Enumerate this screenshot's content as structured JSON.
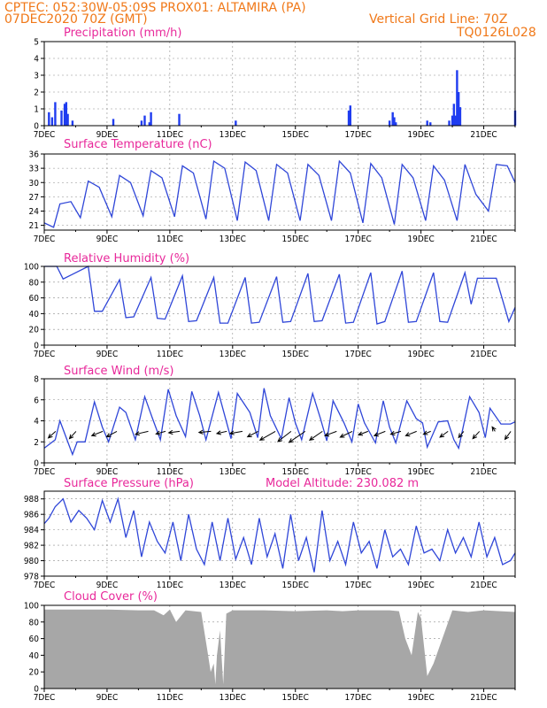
{
  "header": {
    "left_line1": "CPTEC:   052:30W-05:09S   PROX01: ALTAMIRA (PA)",
    "left_line2": "07DEC2020 70Z (GMT)",
    "right_line1": "Vertical Grid Line: 70Z",
    "right_line2": "TQ0126L028"
  },
  "colors": {
    "header": "#f07818",
    "panel_title": "#e8289a",
    "series_line": "#2f46d8",
    "precip_bar": "#1f3cf0",
    "wind_arrow": "#000000",
    "cloud_fill": "#a7a7a7"
  },
  "date_ticks": [
    "7DEC",
    "9DEC",
    "11DEC",
    "13DEC",
    "15DEC",
    "17DEC",
    "19DEC",
    "21DEC"
  ],
  "model_altitude": "Model Altitude: 230.082 m",
  "chart_data": [
    {
      "id": "precip",
      "type": "bar",
      "title": "Precipitation (mm/h)",
      "ylim": [
        0,
        5
      ],
      "yticks": [
        "0",
        "1",
        "2",
        "3",
        "4",
        "5"
      ],
      "xlim_days": [
        0,
        15
      ],
      "x_days": [
        0.15,
        0.25,
        0.35,
        0.55,
        0.65,
        0.7,
        0.75,
        0.9,
        2.2,
        3.1,
        3.2,
        3.35,
        3.4,
        4.3,
        6.1,
        9.7,
        9.75,
        11.0,
        11.1,
        11.15,
        11.2,
        12.2,
        12.3,
        12.9,
        13.0,
        13.05,
        13.1,
        13.15,
        13.2,
        13.25,
        15.0
      ],
      "values": [
        0.8,
        0.5,
        1.4,
        0.9,
        1.3,
        1.4,
        0.7,
        0.3,
        0.4,
        0.3,
        0.6,
        0.2,
        0.8,
        0.7,
        0.3,
        0.9,
        1.2,
        0.3,
        0.8,
        0.5,
        0.2,
        0.3,
        0.2,
        0.3,
        0.6,
        1.3,
        0.6,
        3.3,
        2.0,
        1.1,
        0.9
      ]
    },
    {
      "id": "temp",
      "type": "line",
      "title": "Surface Temperature (nC)",
      "ylim": [
        20,
        36
      ],
      "yticks": [
        "21",
        "24",
        "27",
        "30",
        "33",
        "36"
      ],
      "xlim_days": [
        0,
        15
      ],
      "x_days": [
        0.0,
        0.3,
        0.5,
        0.85,
        1.15,
        1.4,
        1.75,
        2.15,
        2.4,
        2.75,
        3.15,
        3.4,
        3.75,
        4.15,
        4.4,
        4.75,
        5.15,
        5.4,
        5.75,
        6.15,
        6.4,
        6.75,
        7.15,
        7.4,
        7.75,
        8.15,
        8.4,
        8.75,
        9.15,
        9.4,
        9.75,
        10.15,
        10.4,
        10.75,
        11.15,
        11.4,
        11.75,
        12.15,
        12.4,
        12.75,
        13.15,
        13.4,
        13.75,
        14.15,
        14.4,
        14.75,
        15.0
      ],
      "values": [
        21.5,
        20.6,
        25.5,
        26.0,
        22.6,
        30.3,
        29.0,
        22.8,
        31.5,
        30.0,
        23.0,
        32.5,
        31.0,
        22.8,
        33.5,
        32.0,
        22.3,
        34.5,
        33.0,
        22.0,
        34.3,
        32.5,
        22.0,
        33.8,
        32.0,
        22.0,
        33.8,
        31.5,
        22.0,
        34.5,
        32.0,
        21.5,
        34.0,
        31.0,
        21.2,
        33.8,
        31.0,
        22.0,
        33.5,
        30.5,
        22.0,
        33.8,
        27.5,
        24.0,
        33.8,
        33.5,
        30.0
      ]
    },
    {
      "id": "rh",
      "type": "line",
      "title": "Relative Humidity (%)",
      "ylim": [
        0,
        100
      ],
      "yticks": [
        "0",
        "20",
        "40",
        "60",
        "80",
        "100"
      ],
      "xlim_days": [
        0,
        15
      ],
      "x_days": [
        0.0,
        0.4,
        0.6,
        0.9,
        1.4,
        1.6,
        1.85,
        2.4,
        2.6,
        2.85,
        3.4,
        3.6,
        3.85,
        4.4,
        4.6,
        4.85,
        5.4,
        5.6,
        5.85,
        6.4,
        6.6,
        6.85,
        7.4,
        7.6,
        7.85,
        8.4,
        8.6,
        8.85,
        9.4,
        9.6,
        9.85,
        10.4,
        10.6,
        10.85,
        11.4,
        11.6,
        11.85,
        12.4,
        12.6,
        12.85,
        13.4,
        13.6,
        13.8,
        14.4,
        14.8,
        15.0
      ],
      "values": [
        100,
        100,
        84,
        90,
        100,
        43,
        43,
        83,
        35,
        36,
        86,
        34,
        33,
        88,
        30,
        31,
        86,
        28,
        28,
        86,
        28,
        29,
        87,
        29,
        30,
        91,
        30,
        31,
        90,
        28,
        29,
        92,
        27,
        30,
        94,
        29,
        30,
        92,
        30,
        29,
        92,
        52,
        85,
        85,
        30,
        48
      ]
    },
    {
      "id": "wind",
      "type": "line",
      "title": "Surface Wind (m/s)",
      "ylim": [
        0,
        8
      ],
      "yticks": [
        "0",
        "2",
        "4",
        "6",
        "8"
      ],
      "xlim_days": [
        0,
        15
      ],
      "x_days": [
        0.0,
        0.35,
        0.5,
        0.9,
        1.05,
        1.3,
        1.6,
        1.85,
        2.05,
        2.4,
        2.6,
        2.9,
        3.2,
        3.45,
        3.7,
        3.95,
        4.2,
        4.5,
        4.7,
        4.95,
        5.15,
        5.55,
        5.75,
        5.95,
        6.15,
        6.55,
        6.8,
        7.0,
        7.2,
        7.55,
        7.8,
        8.0,
        8.2,
        8.55,
        8.8,
        9.0,
        9.2,
        9.55,
        9.8,
        10.0,
        10.2,
        10.55,
        10.8,
        11.0,
        11.2,
        11.55,
        11.85,
        12.05,
        12.2,
        12.55,
        12.85,
        13.05,
        13.2,
        13.55,
        13.85,
        14.05,
        14.2,
        14.55,
        14.85,
        15.0
      ],
      "values": [
        1.4,
        2.2,
        4.0,
        0.8,
        2.0,
        2.0,
        5.8,
        3.4,
        2.0,
        5.3,
        4.8,
        2.2,
        6.3,
        4.2,
        2.2,
        7.0,
        4.5,
        2.5,
        6.8,
        4.5,
        2.2,
        6.7,
        4.5,
        2.3,
        6.6,
        4.8,
        2.4,
        7.1,
        4.5,
        2.3,
        6.2,
        3.8,
        2.2,
        6.6,
        4.2,
        2.1,
        5.9,
        3.8,
        2.0,
        5.6,
        3.8,
        1.9,
        5.9,
        3.4,
        1.9,
        5.9,
        4.2,
        3.8,
        1.5,
        3.9,
        4.0,
        2.2,
        1.4,
        6.3,
        4.8,
        2.4,
        5.2,
        3.7,
        3.7,
        3.9
      ],
      "arrows": {
        "x_days": [
          0.25,
          0.9,
          1.75,
          2.2,
          3.2,
          3.75,
          4.2,
          5.2,
          5.7,
          6.2,
          6.7,
          7.25,
          7.75,
          8.2,
          8.75,
          9.2,
          9.7,
          10.2,
          10.75,
          11.25,
          11.75,
          12.2,
          12.75,
          13.25,
          13.75,
          14.25,
          14.75
        ],
        "u": [
          -2.0,
          -1.8,
          -3.0,
          -2.8,
          -3.5,
          -2.6,
          -3.0,
          -3.3,
          -2.7,
          -3.4,
          -2.9,
          -4.2,
          -3.6,
          -4.4,
          -3.5,
          -3.2,
          -3.3,
          -2.6,
          -3.0,
          -2.8,
          -3.0,
          -2.0,
          -2.2,
          -1.4,
          -1.8,
          -0.8,
          -1.6
        ],
        "v": [
          -1.8,
          -2.0,
          -1.2,
          -1.5,
          -0.8,
          -0.7,
          -0.4,
          -0.3,
          -0.6,
          -0.6,
          -1.5,
          -2.4,
          -2.8,
          -3.0,
          -2.4,
          -1.2,
          -1.6,
          -1.0,
          -1.2,
          -0.8,
          -1.2,
          -0.8,
          -1.6,
          -1.7,
          -2.0,
          1.2,
          -2.2
        ]
      }
    },
    {
      "id": "pressure",
      "type": "line",
      "title": "Surface Pressure (hPa)",
      "ylim": [
        978,
        989
      ],
      "yticks": [
        "978",
        "980",
        "982",
        "984",
        "986",
        "988"
      ],
      "xlim_days": [
        0,
        15
      ],
      "x_days": [
        0.0,
        0.15,
        0.35,
        0.6,
        0.85,
        1.1,
        1.35,
        1.6,
        1.85,
        2.1,
        2.35,
        2.6,
        2.85,
        3.1,
        3.35,
        3.6,
        3.85,
        4.1,
        4.35,
        4.6,
        4.85,
        5.1,
        5.35,
        5.6,
        5.85,
        6.1,
        6.35,
        6.6,
        6.85,
        7.1,
        7.35,
        7.6,
        7.85,
        8.1,
        8.35,
        8.6,
        8.85,
        9.1,
        9.35,
        9.6,
        9.85,
        10.1,
        10.35,
        10.6,
        10.85,
        11.1,
        11.35,
        11.6,
        11.85,
        12.1,
        12.35,
        12.6,
        12.85,
        13.1,
        13.35,
        13.6,
        13.85,
        14.1,
        14.35,
        14.6,
        14.85,
        15.0
      ],
      "values": [
        984.8,
        985.5,
        987.0,
        988.0,
        985.0,
        986.5,
        985.5,
        984.0,
        987.8,
        985.0,
        988.0,
        983.0,
        986.5,
        980.5,
        985.0,
        982.5,
        981.0,
        985.0,
        980.0,
        986.0,
        981.5,
        979.5,
        985.0,
        980.0,
        985.5,
        980.2,
        983.0,
        979.5,
        985.5,
        980.5,
        983.5,
        979.0,
        986.0,
        980.0,
        983.0,
        978.5,
        986.5,
        980.0,
        982.5,
        979.5,
        985.0,
        981.0,
        982.5,
        979.0,
        984.0,
        980.5,
        981.5,
        979.5,
        984.5,
        981.0,
        981.5,
        980.0,
        984.0,
        981.0,
        983.0,
        980.5,
        985.0,
        980.5,
        983.0,
        979.5,
        980.0,
        981.0
      ]
    },
    {
      "id": "cloud",
      "type": "area",
      "title": "Cloud Cover (%)",
      "ylim": [
        0,
        100
      ],
      "yticks": [
        "0",
        "20",
        "40",
        "60",
        "80",
        "100"
      ],
      "xlim_days": [
        0,
        15
      ],
      "x_days": [
        0.0,
        1.0,
        2.0,
        3.0,
        3.5,
        3.8,
        4.0,
        4.2,
        4.5,
        5.0,
        5.2,
        5.3,
        5.4,
        5.45,
        5.5,
        5.6,
        5.7,
        5.8,
        5.9,
        6.0,
        7.0,
        8.0,
        9.0,
        9.5,
        10.0,
        11.0,
        11.3,
        11.5,
        11.7,
        11.9,
        12.0,
        12.2,
        12.4,
        13.0,
        13.5,
        14.0,
        15.0
      ],
      "values": [
        95,
        95,
        95,
        94,
        94,
        88,
        95,
        80,
        94,
        92,
        45,
        20,
        30,
        5,
        40,
        70,
        5,
        90,
        92,
        94,
        94,
        93,
        94,
        93,
        94,
        94,
        93,
        60,
        40,
        92,
        85,
        15,
        30,
        94,
        92,
        94,
        92
      ]
    }
  ]
}
